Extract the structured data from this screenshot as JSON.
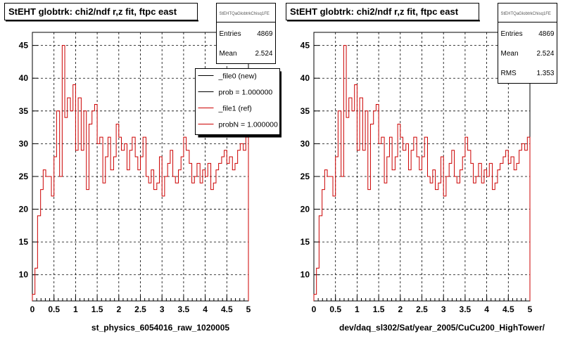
{
  "chart_data": [
    {
      "type": "bar",
      "title": "StEHT globtrk: chi2/ndf r,z fit, ftpc east",
      "xlabel": "st_physics_6054016_raw_1020005",
      "ylabel": "",
      "xlim": [
        0,
        5
      ],
      "ylim": [
        6,
        47
      ],
      "x_ticks": [
        "0",
        "0.5",
        "1",
        "1.5",
        "2",
        "2.5",
        "3",
        "3.5",
        "4",
        "4.5",
        "5"
      ],
      "y_ticks": [
        "10",
        "15",
        "20",
        "25",
        "30",
        "35",
        "40",
        "45"
      ],
      "grid": true,
      "bin_width": 0.1,
      "stats": {
        "name": "StEHTQaGlobtrkChisq1FE",
        "entries_label": "Entries",
        "entries": "4869",
        "mean_label": "Mean",
        "mean": "2.524"
      },
      "legend": {
        "placement": "top-right",
        "entries": [
          {
            "label": "_file0 (new)",
            "color": "#000000"
          },
          {
            "label": "prob = 1.000000",
            "color": "#000000"
          },
          {
            "label": "_file1 (ref)",
            "color": "#cc0000"
          },
          {
            "label": "probN = 1.000000",
            "color": "#cc0000"
          }
        ]
      },
      "series": [
        {
          "color": "#cc0000",
          "bin_edges": [
            0,
            0.06,
            0.12,
            0.19,
            0.25,
            0.31,
            0.38,
            0.44,
            0.5,
            0.56,
            0.63,
            0.69,
            0.75,
            0.81,
            0.88,
            0.94,
            1.0,
            1.06,
            1.13,
            1.19,
            1.25,
            1.31,
            1.38,
            1.44,
            1.5,
            1.56,
            1.63,
            1.69,
            1.75,
            1.81,
            1.88,
            1.94,
            2.0,
            2.06,
            2.13,
            2.19,
            2.25,
            2.31,
            2.38,
            2.44,
            2.5,
            2.56,
            2.63,
            2.69,
            2.75,
            2.81,
            2.88,
            2.94,
            3.0,
            3.06,
            3.13,
            3.19,
            3.25,
            3.31,
            3.38,
            3.44,
            3.5,
            3.56,
            3.63,
            3.69,
            3.75,
            3.81,
            3.88,
            3.94,
            4.0,
            4.06,
            4.13,
            4.19,
            4.25,
            4.31,
            4.38,
            4.44,
            4.5,
            4.56,
            4.63,
            4.69,
            4.75,
            4.81,
            4.88,
            4.94,
            5.0
          ],
          "values": [
            7,
            11,
            19,
            23,
            26,
            25,
            25,
            22,
            28,
            35,
            25,
            45,
            34,
            37,
            35,
            39,
            29,
            37,
            29,
            35,
            23,
            33,
            35,
            36,
            30,
            31,
            24,
            28,
            31,
            26,
            28,
            33,
            31,
            29,
            30,
            26,
            29,
            31,
            28,
            26,
            28,
            31,
            25,
            24,
            26,
            23,
            24,
            28,
            22,
            25,
            27,
            29,
            25,
            24,
            26,
            28,
            31,
            29,
            27,
            24,
            25,
            27,
            24,
            26,
            25,
            27,
            23,
            24,
            26,
            27,
            28,
            29,
            27,
            28,
            26,
            27,
            29,
            30,
            29,
            31
          ]
        }
      ]
    },
    {
      "type": "bar",
      "title": "StEHT globtrk: chi2/ndf r,z fit, ftpc east",
      "xlabel": "dev/daq_sl302/Sat/year_2005/CuCu200_HighTower/",
      "ylabel": "",
      "xlim": [
        0,
        5
      ],
      "ylim": [
        6,
        47
      ],
      "x_ticks": [
        "0",
        "0.5",
        "1",
        "1.5",
        "2",
        "2.5",
        "3",
        "3.5",
        "4",
        "4.5",
        "5"
      ],
      "y_ticks": [
        "10",
        "15",
        "20",
        "25",
        "30",
        "35",
        "40",
        "45"
      ],
      "grid": true,
      "stats": {
        "name": "StEHTQaGlobtrkChisq1FE",
        "entries_label": "Entries",
        "entries": "4869",
        "mean_label": "Mean",
        "mean": "2.524",
        "rms_label": "RMS",
        "rms": "1.353"
      },
      "series": [
        {
          "color": "#cc0000",
          "values": [
            7,
            11,
            19,
            23,
            26,
            25,
            25,
            22,
            28,
            35,
            25,
            45,
            34,
            37,
            35,
            39,
            29,
            37,
            29,
            35,
            23,
            33,
            35,
            36,
            30,
            31,
            24,
            28,
            31,
            26,
            28,
            33,
            31,
            29,
            30,
            26,
            29,
            31,
            28,
            26,
            28,
            31,
            25,
            24,
            26,
            23,
            24,
            28,
            22,
            25,
            27,
            29,
            25,
            24,
            26,
            28,
            31,
            29,
            27,
            24,
            25,
            27,
            24,
            26,
            25,
            27,
            23,
            24,
            26,
            27,
            28,
            29,
            27,
            28,
            26,
            27,
            29,
            30,
            29,
            31
          ]
        }
      ]
    }
  ]
}
